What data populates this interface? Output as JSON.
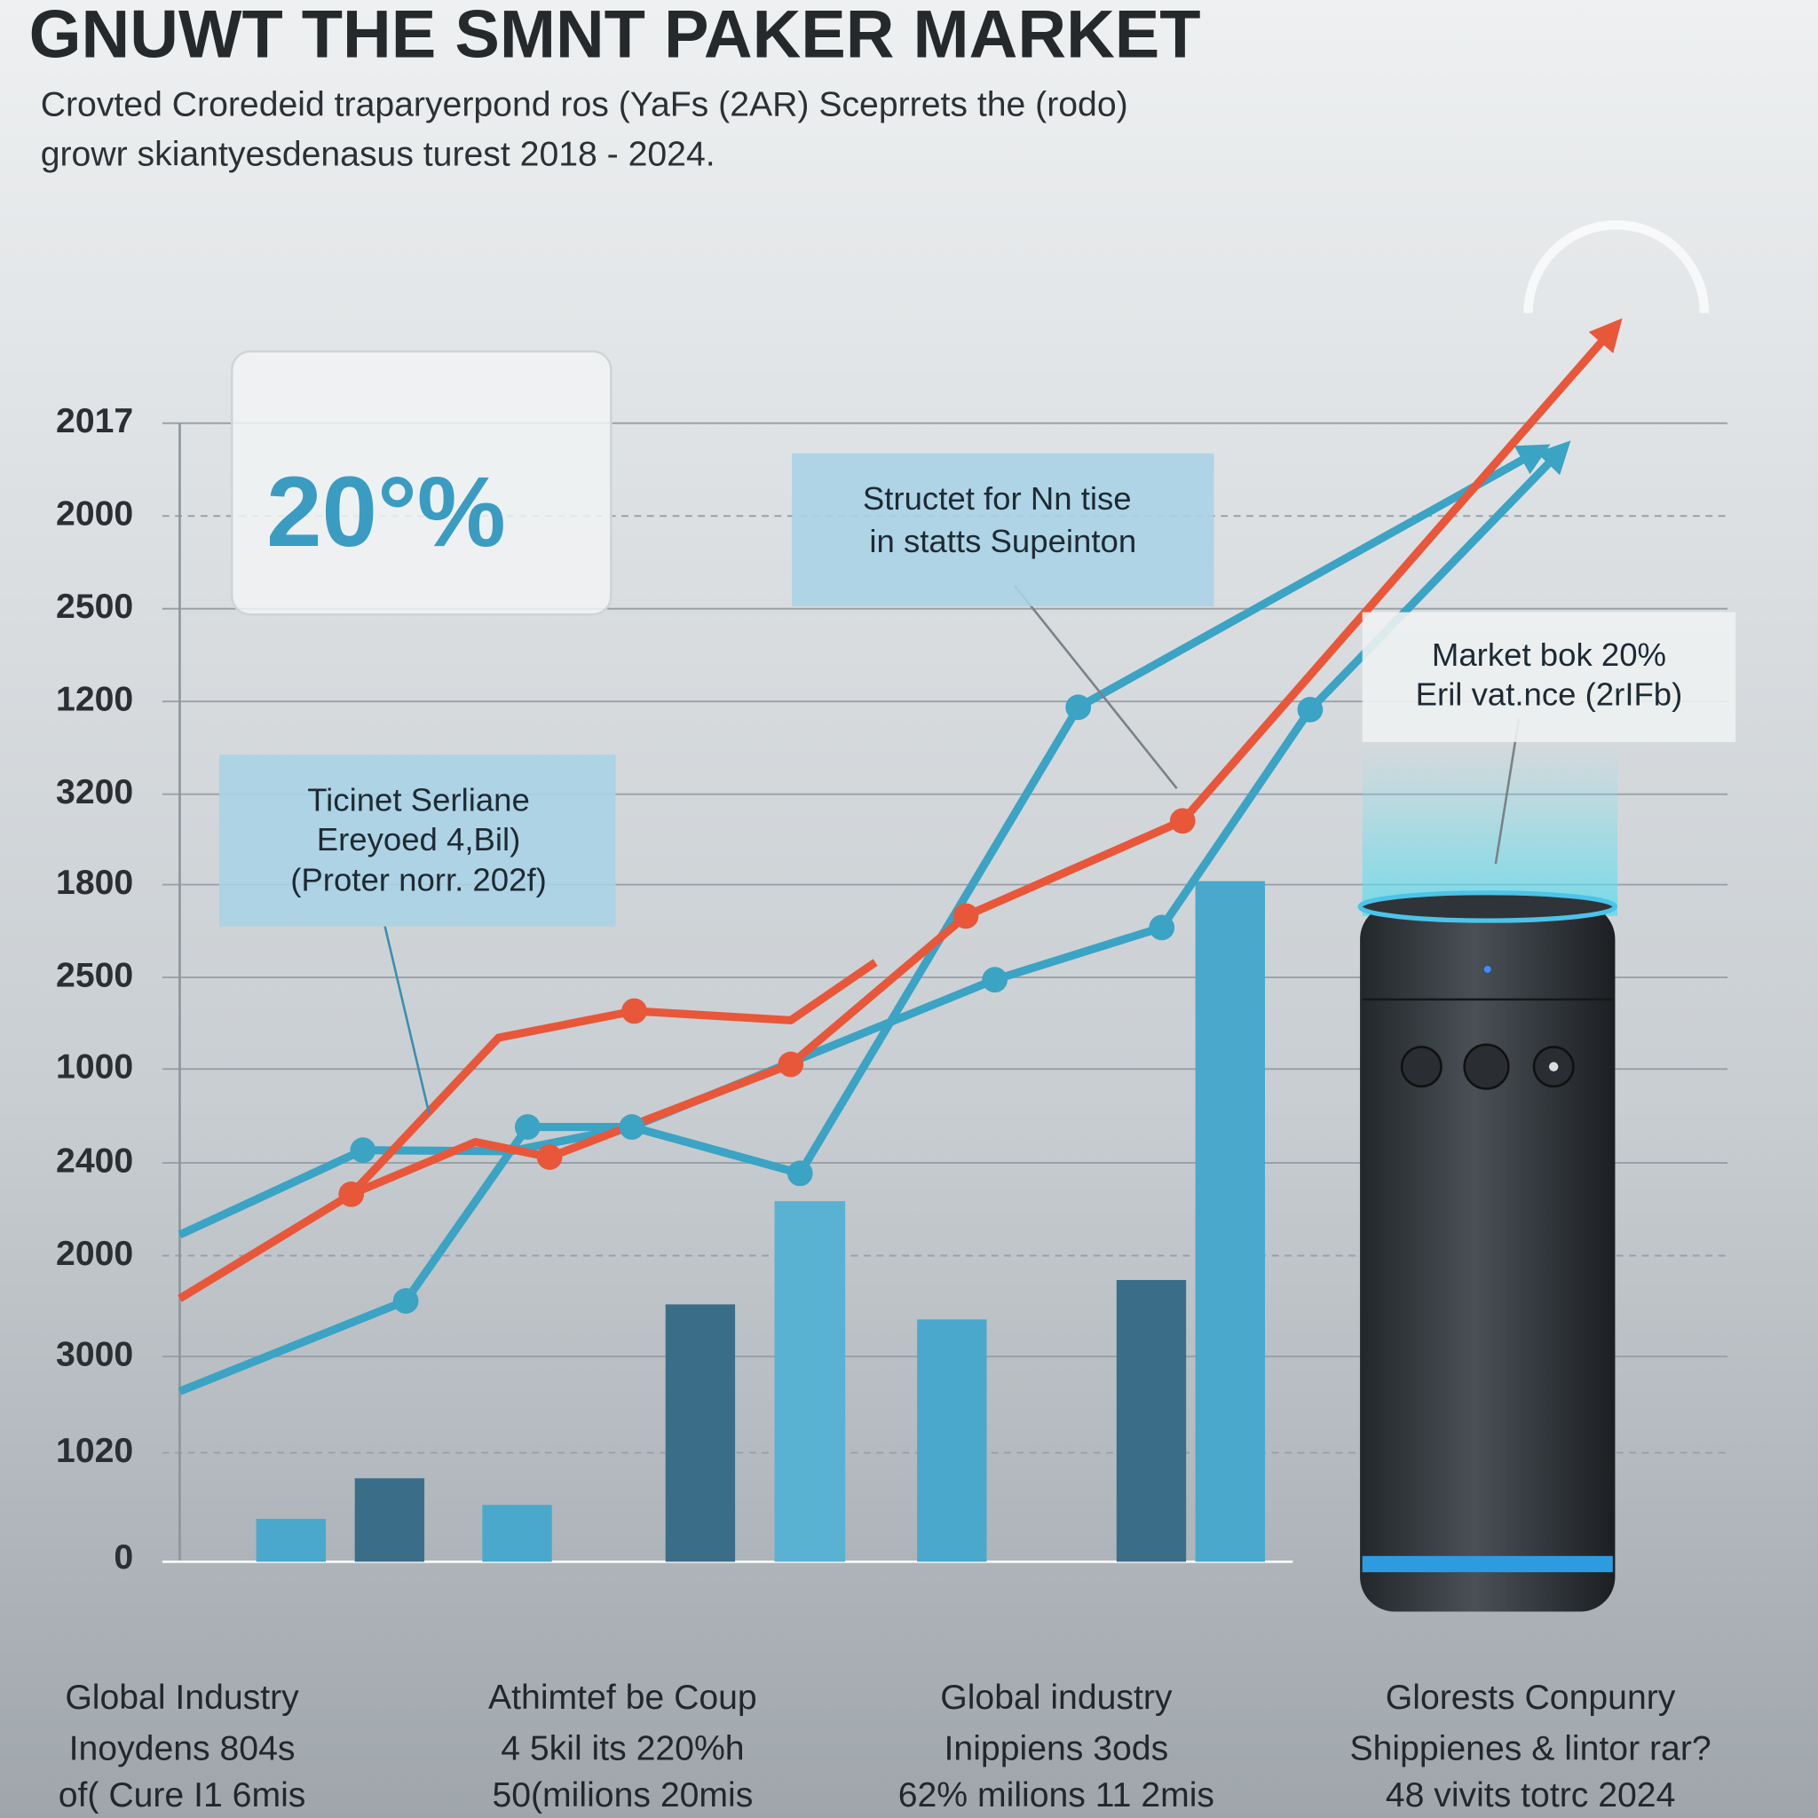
{
  "header": {
    "title": "GNUWT THE SMNT PAKER MARKET",
    "subtitle": [
      "Crovted Croredeid traparyerpond ros (YaFs (2AR) Sceprrets the (rodo)",
      "growr skiantyesdenasus turest 2018 - 2024."
    ]
  },
  "y_labels": [
    "2017",
    "2000",
    "2500",
    "1200",
    "3200",
    "1800",
    "2500",
    "1000",
    "2400",
    "2000",
    "3000",
    "1020",
    "0"
  ],
  "callouts": [
    {
      "lines": [
        "20°%"
      ]
    },
    {
      "lines": [
        "Structet for Nn tise",
        "in statts Supeinton"
      ]
    },
    {
      "lines": [
        "Ticinet Serliane",
        "Ereyoed 4,Bil)",
        "(Proter norr. 202f)"
      ]
    },
    {
      "lines": [
        "Market bok 20%",
        "Eril vat.nce (2rIFb)"
      ]
    }
  ],
  "captions": [
    {
      "lines": [
        "Global Industry",
        "Inoydens 804s",
        "of( Cure I1 6mis"
      ]
    },
    {
      "lines": [
        "Athimtef be Coup",
        "4 5kil its 220%h",
        "50(milions 20mis"
      ]
    },
    {
      "lines": [
        "Global industry",
        "Inippiens 3ods",
        "62% milions 11 2mis"
      ]
    },
    {
      "lines": [
        "Glorests Conpunry",
        "Shippienes & lintor rar?",
        "48 vivits totrc 2024"
      ]
    }
  ]
}
